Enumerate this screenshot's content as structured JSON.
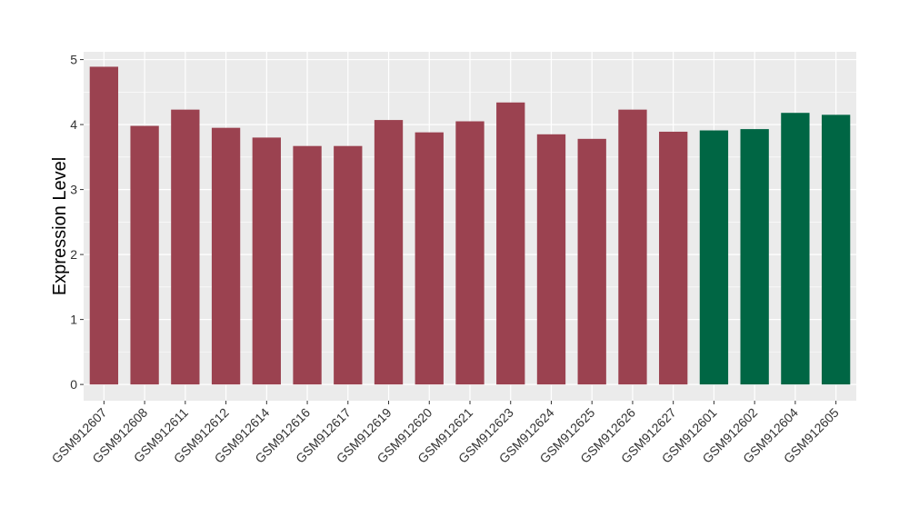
{
  "chart_data": {
    "type": "bar",
    "title": "",
    "xlabel": "",
    "ylabel": "Expression Level",
    "ylim": [
      -0.25,
      5.12
    ],
    "yticks": [
      0,
      1,
      2,
      3,
      4,
      5
    ],
    "ytick_labels": [
      "0",
      "1",
      "2",
      "3",
      "4",
      "5"
    ],
    "grid": true,
    "legend": "none",
    "categories": [
      "GSM912607",
      "GSM912608",
      "GSM912611",
      "GSM912612",
      "GSM912614",
      "GSM912616",
      "GSM912617",
      "GSM912619",
      "GSM912620",
      "GSM912621",
      "GSM912623",
      "GSM912624",
      "GSM912625",
      "GSM912626",
      "GSM912627",
      "GSM912601",
      "GSM912602",
      "GSM912604",
      "GSM912605"
    ],
    "values": [
      4.89,
      3.98,
      4.23,
      3.95,
      3.8,
      3.67,
      3.67,
      4.07,
      3.88,
      4.05,
      4.34,
      3.85,
      3.78,
      4.23,
      3.89,
      3.91,
      3.93,
      4.18,
      4.15
    ],
    "groups": [
      1,
      1,
      1,
      1,
      1,
      1,
      1,
      1,
      1,
      1,
      1,
      1,
      1,
      1,
      1,
      2,
      2,
      2,
      2
    ],
    "colors": {
      "group1": "#9b4250",
      "group2": "#006644",
      "panel_bg": "#ebebeb",
      "grid": "#ffffff"
    }
  }
}
